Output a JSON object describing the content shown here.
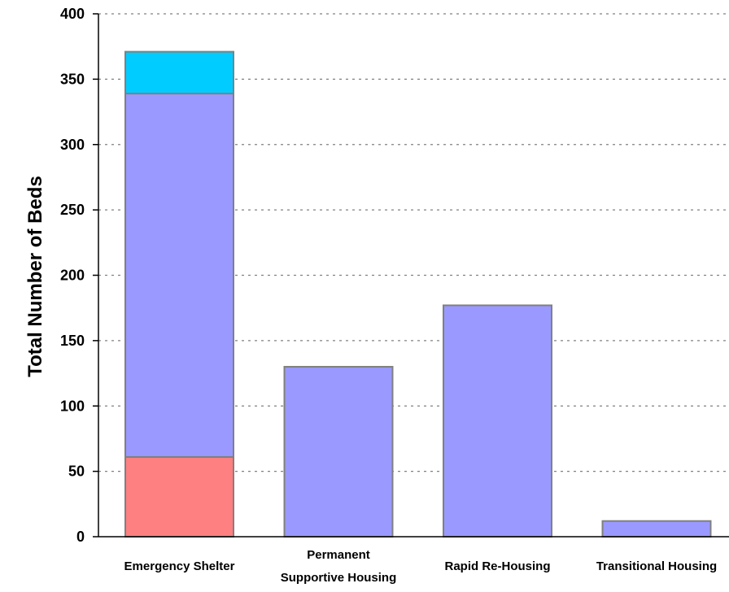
{
  "chart_data": {
    "type": "bar",
    "stacked": true,
    "title": "",
    "xlabel": "",
    "ylabel": "Total Number of Beds",
    "ylim": [
      0,
      400
    ],
    "yticks": [
      "0",
      "50",
      "100",
      "150",
      "200",
      "250",
      "300",
      "350",
      "400"
    ],
    "grid": true,
    "categories": [
      [
        "Emergency Shelter"
      ],
      [
        "Permanent",
        "Supportive Housing"
      ],
      [
        "Rapid Re-Housing"
      ],
      [
        "Transitional Housing"
      ]
    ],
    "series": [
      {
        "color": "#ff8080",
        "values": [
          61,
          0,
          0,
          0
        ]
      },
      {
        "color": "#9999ff",
        "values": [
          278,
          130,
          177,
          12
        ]
      },
      {
        "color": "#00ccff",
        "values": [
          32,
          0,
          0,
          0
        ]
      }
    ]
  }
}
